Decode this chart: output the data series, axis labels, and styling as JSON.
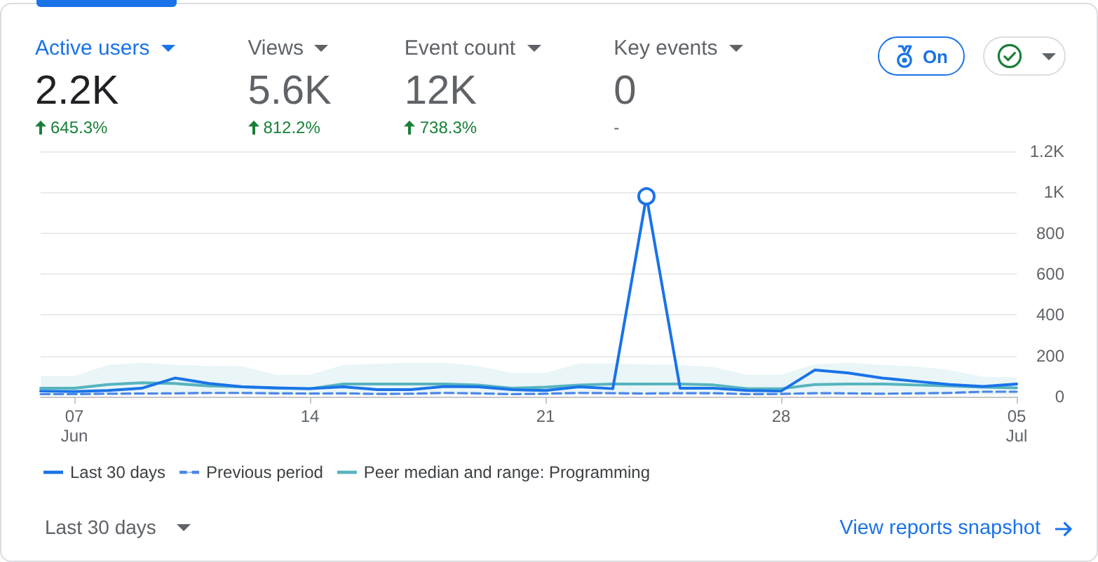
{
  "chart_data": [
    {
      "type": "other",
      "categories": [
        "Active users",
        "Views",
        "Event count",
        "Key events"
      ],
      "value_labels": [
        "2.2K",
        "5.6K",
        "12K",
        "0"
      ],
      "annotations": [
        "645.3%",
        "812.2%",
        "738.3%",
        "-",
        "On"
      ]
    },
    {
      "type": "line",
      "x": [
        "--06-06",
        "--06-07",
        "--06-08",
        "--06-09",
        "--06-10",
        "--06-11",
        "--06-12",
        "--06-13",
        "--06-14",
        "--06-15",
        "--06-16",
        "--06-17",
        "--06-18",
        "--06-19",
        "--06-20",
        "--06-21",
        "--06-22",
        "--06-23",
        "--06-24",
        "--06-25",
        "--06-26",
        "--06-27",
        "--06-28",
        "--06-29",
        "--06-30",
        "--07-01",
        "--07-02",
        "--07-03",
        "--07-04",
        "--07-05"
      ],
      "xlim": [
        "--06-06",
        "--07-05"
      ],
      "xticks": [
        {
          "value": "--06-07",
          "label": "07\nJun"
        },
        {
          "value": "--06-14",
          "label": "14"
        },
        {
          "value": "--06-21",
          "label": "21"
        },
        {
          "value": "--06-28",
          "label": "28"
        },
        {
          "value": "--07-05",
          "label": "05\nJul"
        }
      ],
      "ylim": [
        0,
        1200
      ],
      "yticks": [
        0,
        200,
        400,
        600,
        800,
        {
          "value": 1000,
          "label": "1K"
        },
        {
          "value": 1200,
          "label": "1.2K"
        }
      ],
      "grid": "y",
      "legend": "bottom left",
      "annotations": [
        "Last 30 days",
        "View reports snapshot"
      ],
      "series": [
        {
          "name": "Last 30 days",
          "color": "#1a73e8",
          "line_style": "solid",
          "values": [
            27,
            25,
            30,
            41,
            91,
            64,
            48,
            43,
            39,
            48,
            34,
            34,
            50,
            48,
            34,
            30,
            48,
            39,
            980,
            41,
            41,
            30,
            27,
            130,
            116,
            91,
            75,
            59,
            50,
            62
          ]
        },
        {
          "name": "Previous period",
          "color": "#4a86e8",
          "line_style": "dashed",
          "values": [
            12,
            12,
            14,
            15,
            16,
            18,
            18,
            16,
            15,
            16,
            13,
            14,
            18,
            16,
            12,
            14,
            18,
            17,
            15,
            17,
            17,
            12,
            13,
            17,
            16,
            14,
            16,
            18,
            24,
            24
          ]
        },
        {
          "name": "Peer median and range: Programming",
          "color": "#56b4be",
          "line_style": "solid",
          "values": [
            41,
            41,
            59,
            68,
            64,
            52,
            48,
            41,
            39,
            62,
            62,
            62,
            62,
            57,
            41,
            46,
            57,
            62,
            62,
            62,
            57,
            39,
            39,
            59,
            62,
            62,
            57,
            52,
            46,
            43
          ],
          "lower": [
            10,
            10,
            14,
            16,
            14,
            12,
            12,
            10,
            10,
            14,
            14,
            14,
            14,
            12,
            10,
            10,
            14,
            14,
            14,
            14,
            12,
            10,
            10,
            14,
            14,
            14,
            12,
            12,
            10,
            10
          ],
          "upper": [
            100,
            100,
            155,
            166,
            155,
            150,
            148,
            107,
            107,
            155,
            160,
            166,
            166,
            150,
            116,
            116,
            162,
            162,
            158,
            155,
            144,
            107,
            107,
            158,
            166,
            155,
            148,
            130,
            98,
            94
          ]
        },
        {
          "type": "scatter",
          "x": [
            "--06-24"
          ],
          "color": "#1a73e8",
          "marker": "circle",
          "values": [
            980
          ]
        }
      ]
    }
  ]
}
